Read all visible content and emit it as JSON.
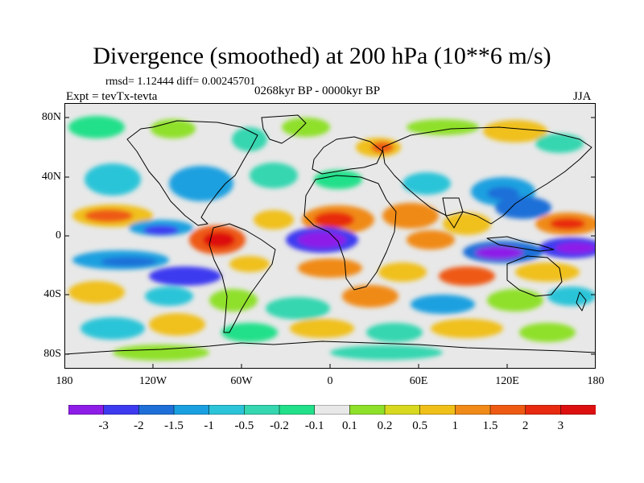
{
  "title": "Divergence (smoothed) at 200 hPa (10**6 m/s)",
  "stats_text": "rmsd= 1.12444 diff= 0.00245701",
  "expt_text": "Expt = tevTx-tevta",
  "period_text": "0268kyr BP - 0000kyr BP",
  "season_text": "JJA",
  "y_axis_labels": [
    "80N",
    "40N",
    "0",
    "40S",
    "80S"
  ],
  "x_axis_labels": [
    "180",
    "120W",
    "60W",
    "0",
    "60E",
    "120E",
    "180"
  ],
  "colorbar": {
    "labels": [
      "-3",
      "-2",
      "-1.5",
      "-1",
      "-0.5",
      "-0.2",
      "-0.1",
      "0.1",
      "0.2",
      "0.5",
      "1",
      "1.5",
      "2",
      "3"
    ],
    "colors": [
      "#8e1de8",
      "#3d3af0",
      "#1f6fd8",
      "#1aa0e0",
      "#2cc4d8",
      "#36d6b0",
      "#22e08a",
      "#e8e8e8",
      "#8fe02a",
      "#d8d820",
      "#f0c01a",
      "#f08a18",
      "#ee5a14",
      "#e82a10",
      "#dd1010"
    ]
  },
  "field_colors": {
    "neutral": "#e8e8e8",
    "land_outline": "#000000"
  }
}
